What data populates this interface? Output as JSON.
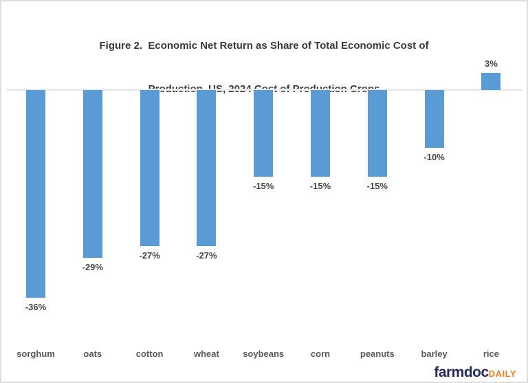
{
  "title_lines": [
    "Figure 2.  Economic Net Return as Share of Total Economic Cost of",
    "Production, US, 2024 Cost of Production Crops"
  ],
  "chart_data": {
    "type": "bar",
    "title": "Figure 2.  Economic Net Return as Share of Total Economic Cost of Production, US, 2024 Cost of Production Crops",
    "categories": [
      "sorghum",
      "oats",
      "cotton",
      "wheat",
      "soybeans",
      "corn",
      "peanuts",
      "barley",
      "rice"
    ],
    "values": [
      -36,
      -29,
      -27,
      -27,
      -15,
      -15,
      -15,
      -10,
      3
    ],
    "data_labels": [
      "-36%",
      "-29%",
      "-27%",
      "-27%",
      "-15%",
      "-15%",
      "-15%",
      "-10%",
      "3%"
    ],
    "unit": "percent",
    "bar_color": "#5b9bd5",
    "data_label_color": "#454545",
    "category_label_color": "#595959",
    "axis_line_color": "#eaeaea",
    "baseline": 0,
    "ylim": [
      -40,
      8
    ],
    "grid": false,
    "legend": false,
    "xlabel": "",
    "ylabel": ""
  },
  "branding": {
    "farmdoc": "farmdoc",
    "daily": "DAILY",
    "farmdoc_color": "#232b5f",
    "daily_color": "#f07d26"
  }
}
